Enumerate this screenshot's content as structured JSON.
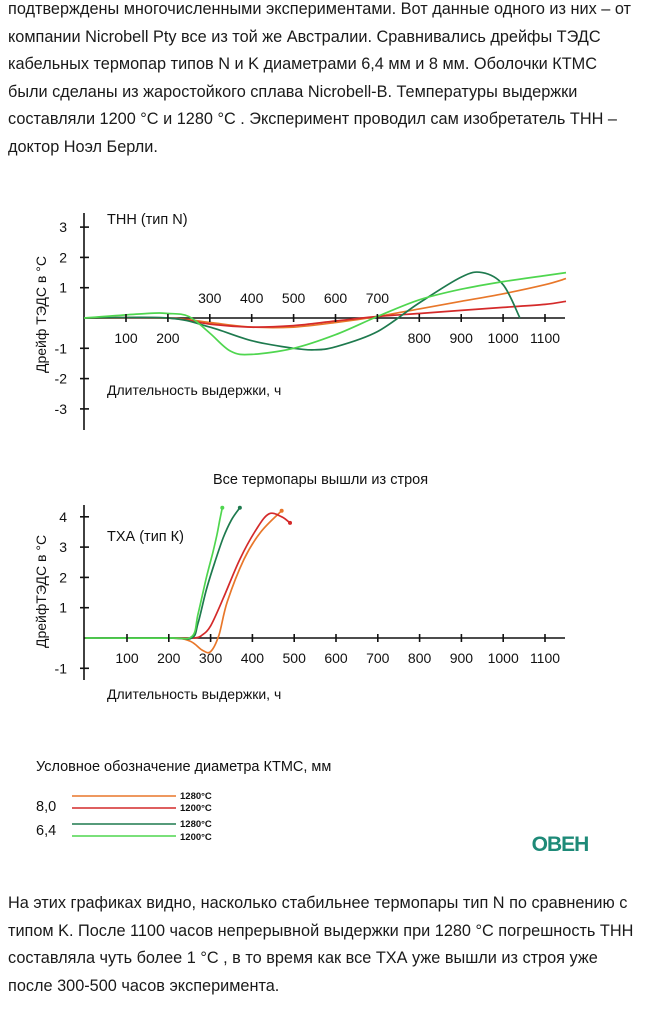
{
  "text": {
    "paragraph_top": "подтверждены многочисленными экспериментами. Вот данные одного из них – от компании Nicrobell Pty все из той же Австралии. Сравнивались дрейфы ТЭДС кабельных термопар типов N и K диаметрами 6,4 мм и 8 мм. Оболочки КТМС были сделаны из жаростойкого сплава Nicrobell-B. Температуры выдержки составляли 1200 °С и 1280 °С . Эксперимент проводил сам изобретатель ТНН – доктор Ноэл Берли.",
    "paragraph_bottom": "На этих графиках видно, насколько стабильнее термопары тип N по сравнению с типом K. После 1100 часов непрерывной выдержки при 1280 °С погрешность ТНН составляла чуть более 1 °С , в то время как все ТХА уже вышли из строя уже после 300-500 часов эксперимента."
  },
  "legend": {
    "title": "Условное обозначение диаметра КТМС, мм",
    "groups": [
      {
        "diameter": "8,0",
        "entries": [
          {
            "label": "1280°С",
            "color": "#e8772a"
          },
          {
            "label": "1200°С",
            "color": "#d42a2a"
          }
        ]
      },
      {
        "diameter": "6,4",
        "entries": [
          {
            "label": "1280°С",
            "color": "#1e7a4e"
          },
          {
            "label": "1200°С",
            "color": "#4fd64f"
          }
        ]
      }
    ]
  },
  "logo": {
    "text": "ОВЕН",
    "color": "#1e8a78"
  },
  "chart_data": [
    {
      "type": "line",
      "title": "ТНН (тип N)",
      "xlabel": "Длительность выдержки, ч",
      "ylabel": "Дрейф ТЭДС в °С",
      "x_ticks": [
        100,
        200,
        300,
        400,
        500,
        600,
        700,
        800,
        900,
        1000,
        1100
      ],
      "y_ticks": [
        -3,
        -2,
        -1,
        1,
        2,
        3
      ],
      "xlim": [
        0,
        1150
      ],
      "ylim": [
        -3.7,
        3.3
      ],
      "grid": false,
      "series": [
        {
          "diameter": "8,0",
          "temperature": "1280°С",
          "color": "#e8772a",
          "x": [
            0,
            200,
            300,
            400,
            500,
            600,
            700,
            800,
            900,
            1000,
            1100,
            1150
          ],
          "y": [
            0,
            0,
            -0.15,
            -0.3,
            -0.3,
            -0.15,
            0.05,
            0.3,
            0.55,
            0.8,
            1.1,
            1.3
          ]
        },
        {
          "diameter": "8,0",
          "temperature": "1200°С",
          "color": "#d42a2a",
          "x": [
            0,
            200,
            300,
            400,
            500,
            600,
            700,
            800,
            900,
            1000,
            1100,
            1150
          ],
          "y": [
            0,
            0,
            -0.2,
            -0.3,
            -0.25,
            -0.1,
            0.05,
            0.15,
            0.25,
            0.35,
            0.45,
            0.55
          ]
        },
        {
          "diameter": "6,4",
          "temperature": "1280°С",
          "color": "#1e7a4e",
          "x": [
            0,
            200,
            300,
            400,
            500,
            550,
            600,
            700,
            800,
            900,
            950,
            1000,
            1040
          ],
          "y": [
            0,
            0,
            -0.3,
            -0.75,
            -1.0,
            -1.05,
            -0.95,
            -0.45,
            0.5,
            1.35,
            1.5,
            1.1,
            0
          ]
        },
        {
          "diameter": "6,4",
          "temperature": "1200°С",
          "color": "#4fd64f",
          "x": [
            0,
            150,
            200,
            250,
            300,
            350,
            400,
            500,
            600,
            700,
            800,
            900,
            1000,
            1100,
            1150
          ],
          "y": [
            0,
            0.15,
            0.15,
            0.05,
            -0.5,
            -1.1,
            -1.2,
            -1.0,
            -0.55,
            0.05,
            0.6,
            0.95,
            1.2,
            1.4,
            1.5
          ]
        }
      ]
    },
    {
      "type": "line",
      "title": "ТХА (тип К)",
      "annotation": "Все термопары вышли из строя",
      "xlabel": "Длительность выдержки, ч",
      "ylabel": "ДрейфТЭДС в °С",
      "x_ticks": [
        100,
        200,
        300,
        400,
        500,
        600,
        700,
        800,
        900,
        1000,
        1100
      ],
      "y_ticks": [
        -1,
        1,
        2,
        3,
        4
      ],
      "xlim": [
        0,
        1150
      ],
      "ylim": [
        -1.5,
        4.4
      ],
      "grid": false,
      "series": [
        {
          "diameter": "8,0",
          "temperature": "1280°С",
          "color": "#e8772a",
          "x": [
            0,
            200,
            250,
            280,
            300,
            320,
            340,
            380,
            420,
            470
          ],
          "y": [
            0,
            0,
            -0.1,
            -0.4,
            -0.45,
            0.1,
            1.2,
            2.6,
            3.5,
            4.2
          ]
        },
        {
          "diameter": "8,0",
          "temperature": "1200°С",
          "color": "#d42a2a",
          "x": [
            0,
            200,
            260,
            280,
            300,
            330,
            370,
            410,
            440,
            470,
            490
          ],
          "y": [
            0,
            0,
            0,
            0.1,
            0.4,
            1.3,
            2.6,
            3.6,
            4.1,
            4.0,
            3.8
          ]
        },
        {
          "diameter": "6,4",
          "temperature": "1280°С",
          "color": "#1e7a4e",
          "x": [
            0,
            200,
            255,
            270,
            290,
            310,
            330,
            350,
            370
          ],
          "y": [
            0,
            0,
            0,
            0.5,
            1.6,
            2.5,
            3.3,
            3.9,
            4.3
          ]
        },
        {
          "diameter": "6,4",
          "temperature": "1200°С",
          "color": "#4fd64f",
          "x": [
            0,
            200,
            255,
            270,
            290,
            305,
            315,
            322,
            328
          ],
          "y": [
            0,
            0,
            0.05,
            0.8,
            2.0,
            2.8,
            3.4,
            3.9,
            4.3
          ]
        }
      ]
    }
  ]
}
